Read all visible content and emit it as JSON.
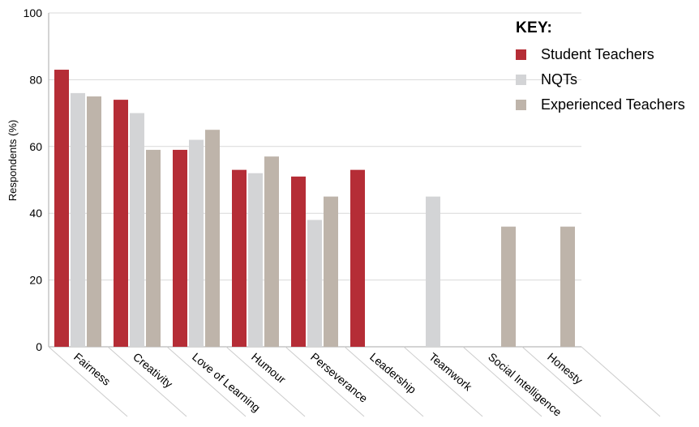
{
  "chart_data": {
    "type": "bar",
    "ylabel": "Respondents (%)",
    "ylim": [
      0,
      100
    ],
    "yticks": [
      0,
      20,
      40,
      60,
      80,
      100
    ],
    "grid": true,
    "legend_title": "KEY:",
    "legend_position": "top-right",
    "categories": [
      "Fairness",
      "Creativity",
      "Love of Learning",
      "Humour",
      "Perseverance",
      "Leadership",
      "Teamwork",
      "Social Intelligence",
      "Honesty"
    ],
    "series": [
      {
        "name": "Student Teachers",
        "color": "#b52d36",
        "values": [
          83,
          74,
          59,
          53,
          51,
          53,
          null,
          null,
          null
        ]
      },
      {
        "name": "NQTs",
        "color": "#d3d4d6",
        "values": [
          76,
          70,
          62,
          52,
          38,
          null,
          45,
          null,
          null
        ]
      },
      {
        "name": "Experienced Teachers",
        "color": "#beb4aa",
        "values": [
          75,
          59,
          65,
          57,
          45,
          null,
          null,
          36,
          36
        ]
      }
    ]
  }
}
